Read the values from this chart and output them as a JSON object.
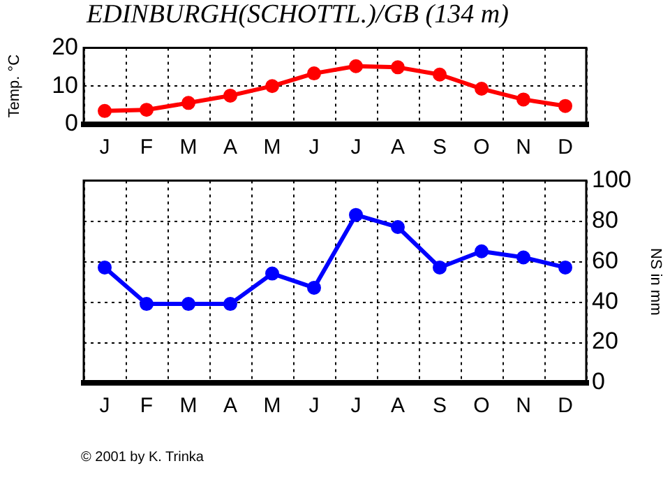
{
  "chart_data": [
    {
      "type": "line",
      "title": "EDINBURGH(SCHOTTL.)/GB (134 m)",
      "ylabel": "Temp. °C",
      "categories": [
        "J",
        "F",
        "M",
        "A",
        "M",
        "J",
        "J",
        "A",
        "S",
        "O",
        "N",
        "D"
      ],
      "series": [
        {
          "color": "#ff0000",
          "values": [
            3.5,
            3.8,
            5.6,
            7.5,
            10,
            13.3,
            15.2,
            14.9,
            13,
            9.3,
            6.5,
            4.8
          ]
        }
      ],
      "ylim": [
        0,
        20
      ],
      "yticks": [
        0,
        10,
        20
      ],
      "grid": true,
      "legend": false,
      "marker": "circle",
      "line_style": "solid"
    },
    {
      "type": "line",
      "y2label": "NS in mm",
      "categories": [
        "J",
        "F",
        "M",
        "A",
        "M",
        "J",
        "J",
        "A",
        "S",
        "O",
        "N",
        "D"
      ],
      "series": [
        {
          "color": "#0000ff",
          "axis": "y2",
          "values": [
            57,
            39,
            39,
            39,
            54,
            47,
            83,
            77,
            57,
            65,
            62,
            57
          ]
        }
      ],
      "y2lim": [
        0,
        100
      ],
      "y2ticks": [
        0,
        20,
        40,
        60,
        80,
        100
      ],
      "grid": true,
      "legend": false,
      "marker": "circle",
      "line_style": "solid",
      "annotations": [
        "© 2001 by K. Trinka"
      ]
    }
  ]
}
